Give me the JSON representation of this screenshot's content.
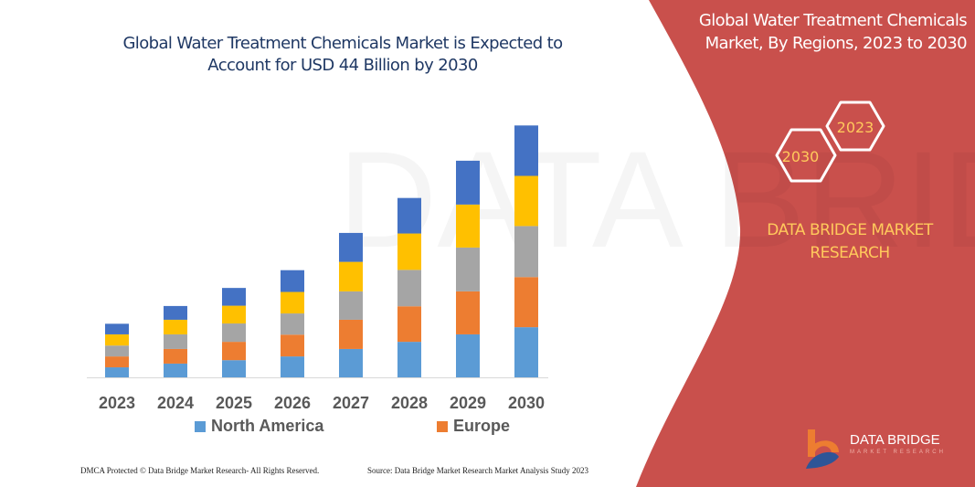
{
  "header": {
    "title": "Global Water Treatment Chemicals Market is Expected to Account for USD 44 Billion by 2030"
  },
  "side_panel": {
    "title": "Global Water Treatment Chemicals Market, By Regions, 2023 to 2030",
    "hex_labels": [
      "2023",
      "2030"
    ],
    "brand_text": "DATA BRIDGE MARKET RESEARCH",
    "logo_text": "DATA BRIDGE",
    "logo_subtext": "MARKET RESEARCH",
    "color": "#c9504c"
  },
  "footer": {
    "copyright": "DMCA Protected © Data Bridge Market Research- All Rights Reserved.",
    "source": "Source: Data Bridge Market Research Market Analysis Study 2023"
  },
  "chart_data": {
    "type": "bar",
    "stacked": true,
    "title": "Global Water Treatment Chemicals Market is Expected to Account for USD 44 Billion by 2030",
    "xlabel": "",
    "ylabel": "",
    "ylim": [
      0,
      44
    ],
    "grid": false,
    "legend_placement": "bottom",
    "categories": [
      "2023",
      "2024",
      "2025",
      "2026",
      "2027",
      "2028",
      "2029",
      "2030"
    ],
    "series": [
      {
        "name": "North America",
        "color": "#5b9bd5",
        "values": [
          1.75,
          2.4,
          3.0,
          3.65,
          4.95,
          6.2,
          7.5,
          8.75
        ]
      },
      {
        "name": "Europe",
        "color": "#ed7d31",
        "values": [
          1.9,
          2.55,
          3.2,
          3.8,
          5.1,
          6.2,
          7.5,
          8.75
        ]
      },
      {
        "color": "#a5a5a5",
        "values": [
          1.9,
          2.55,
          3.2,
          3.7,
          4.95,
          6.35,
          7.65,
          8.9
        ]
      },
      {
        "color": "#ffc000",
        "values": [
          1.95,
          2.55,
          3.1,
          3.75,
          5.15,
          6.35,
          7.5,
          8.75
        ]
      },
      {
        "color": "#4472c4",
        "values": [
          1.85,
          2.4,
          3.1,
          3.8,
          5.05,
          6.2,
          7.65,
          8.8
        ]
      }
    ]
  }
}
